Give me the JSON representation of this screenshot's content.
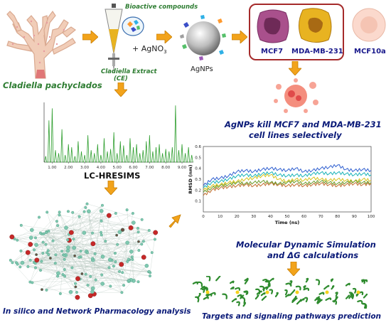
{
  "labels": {
    "coral": "Cladiella pachyclados",
    "bioactive": "Bioactive compounds",
    "agno3": "+ AgNO",
    "agno3_sub": "3",
    "extract_line1": "Cladiella Extract",
    "extract_line2": "(CE)",
    "agnps": "AgNPs",
    "mcf7": "MCF7",
    "mda": "MDA-MB-231",
    "mcf10a": "MCF10a",
    "kill_line1": "AgNPs kill MCF7 and MDA-MB-231",
    "kill_line2": "cell lines selectively",
    "lcms": "LC-HRESIMS",
    "network": "In silico and Network Pharmacology analysis",
    "md_line1": "Molecular Dynamic Simulation",
    "md_line2": "ΔG calculations",
    "md_line2_prefix": "and ",
    "targets": "Targets and signaling pathways prediction"
  },
  "chart_data": [
    {
      "type": "line",
      "title": "",
      "xlabel": "",
      "ylabel": "",
      "x_tick_labels": [
        "1.00",
        "2.00",
        "3.00",
        "4.00",
        "5.00",
        "6.00",
        "7.00",
        "8.00",
        "9.00"
      ],
      "xlim": [
        0.5,
        9.7
      ],
      "series": [
        {
          "x": [
            0.6,
            0.8,
            1.0,
            1.2,
            1.4,
            1.6,
            1.8,
            2.0,
            2.2,
            2.4,
            2.6,
            2.8,
            3.0,
            3.2,
            3.4,
            3.6,
            3.8,
            4.0,
            4.2,
            4.4,
            4.6,
            4.8,
            5.0,
            5.2,
            5.4,
            5.6,
            5.8,
            6.0,
            6.2,
            6.4,
            6.6,
            6.8,
            7.0,
            7.2,
            7.4,
            7.6,
            7.8,
            8.0,
            8.2,
            8.4,
            8.6,
            8.8,
            9.0,
            9.2,
            9.4,
            9.6
          ],
          "values": [
            10,
            70,
            90,
            20,
            15,
            55,
            12,
            30,
            25,
            10,
            35,
            18,
            12,
            45,
            20,
            15,
            30,
            12,
            40,
            18,
            22,
            50,
            15,
            35,
            28,
            12,
            40,
            25,
            30,
            15,
            20,
            35,
            45,
            18,
            25,
            30,
            15,
            22,
            18,
            25,
            95,
            20,
            30,
            15,
            25,
            12
          ]
        }
      ]
    },
    {
      "type": "line",
      "title": "",
      "xlabel": "Time (ns)",
      "ylabel": "RMSD (nm)",
      "x": [
        0,
        5,
        10,
        15,
        20,
        25,
        30,
        35,
        40,
        45,
        50,
        55,
        60,
        65,
        70,
        75,
        80,
        85,
        90,
        95,
        100
      ],
      "x_ticks": [
        0,
        10,
        20,
        30,
        40,
        50,
        60,
        70,
        80,
        90,
        100
      ],
      "y_ticks": [
        0.1,
        0.2,
        0.3,
        0.4,
        0.5,
        0.6
      ],
      "xlim": [
        0,
        100
      ],
      "ylim": [
        0,
        0.6
      ],
      "series": [
        {
          "color": "#2f5fd0",
          "values": [
            0.24,
            0.3,
            0.31,
            0.33,
            0.37,
            0.38,
            0.37,
            0.39,
            0.4,
            0.39,
            0.38,
            0.4,
            0.37,
            0.38,
            0.4,
            0.41,
            0.43,
            0.39,
            0.38,
            0.39,
            0.38
          ]
        },
        {
          "color": "#19b3b8",
          "values": [
            0.22,
            0.27,
            0.28,
            0.3,
            0.33,
            0.34,
            0.33,
            0.35,
            0.36,
            0.34,
            0.33,
            0.34,
            0.33,
            0.35,
            0.36,
            0.35,
            0.36,
            0.35,
            0.34,
            0.35,
            0.34
          ]
        },
        {
          "color": "#d6c21b",
          "values": [
            0.2,
            0.24,
            0.25,
            0.27,
            0.28,
            0.3,
            0.31,
            0.33,
            0.34,
            0.3,
            0.28,
            0.3,
            0.29,
            0.31,
            0.3,
            0.29,
            0.3,
            0.29,
            0.28,
            0.3,
            0.29
          ]
        },
        {
          "color": "#c06b2a",
          "values": [
            0.15,
            0.2,
            0.22,
            0.23,
            0.24,
            0.25,
            0.24,
            0.25,
            0.26,
            0.25,
            0.24,
            0.25,
            0.24,
            0.25,
            0.26,
            0.25,
            0.24,
            0.25,
            0.26,
            0.25,
            0.26
          ]
        },
        {
          "color": "#6c9b2a",
          "values": [
            0.18,
            0.22,
            0.24,
            0.25,
            0.27,
            0.26,
            0.27,
            0.28,
            0.27,
            0.26,
            0.27,
            0.28,
            0.26,
            0.27,
            0.28,
            0.27,
            0.26,
            0.27,
            0.28,
            0.27,
            0.27
          ]
        }
      ]
    }
  ]
}
